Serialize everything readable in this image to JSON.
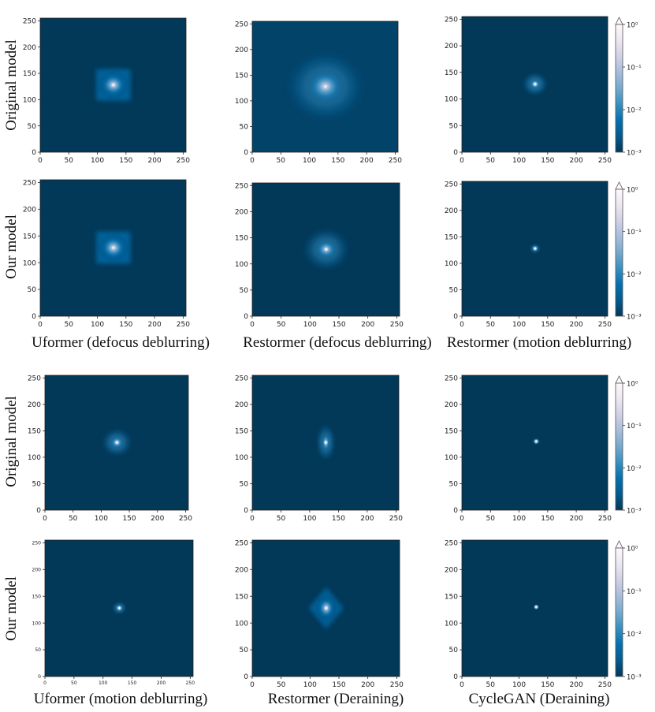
{
  "figure": {
    "row_labels": [
      "Original model",
      "Our model",
      "Original model",
      "Our model"
    ],
    "column_labels_top": [
      "Uformer (defocus deblurring)",
      "Restormer (defocus deblurring)",
      "Restormer (motion deblurring)"
    ],
    "column_labels_bottom": [
      "Uformer (motion deblurring)",
      "Restormer (Deraining)",
      "CycleGAN (Deraining)"
    ]
  },
  "colors": {
    "background_map": "#023858",
    "cmap": [
      "#023858",
      "#045a8d",
      "#0570b0",
      "#3690c0",
      "#74a9cf",
      "#a6bddb",
      "#d0d1e6",
      "#ece7f2",
      "#fff7fb"
    ]
  },
  "chart_data": [
    {
      "type": "heatmap",
      "title": "",
      "row": "Original model",
      "column": "Uformer (defocus deblurring)",
      "xlim": [
        0,
        255
      ],
      "ylim": [
        0,
        255
      ],
      "xticks": [
        0,
        50,
        100,
        150,
        200,
        250
      ],
      "yticks": [
        0,
        50,
        100,
        150,
        200,
        250
      ],
      "center": [
        128,
        128
      ],
      "pattern": "square",
      "extent": 60
    },
    {
      "type": "heatmap",
      "title": "",
      "row": "Original model",
      "column": "Restormer (defocus deblurring)",
      "xlim": [
        0,
        255
      ],
      "ylim": [
        0,
        255
      ],
      "xticks": [
        0,
        50,
        100,
        150,
        200,
        250
      ],
      "yticks": [
        0,
        50,
        100,
        150,
        200,
        250
      ],
      "center": [
        128,
        128
      ],
      "pattern": "wide-diffuse",
      "extent": 140
    },
    {
      "type": "heatmap",
      "title": "",
      "row": "Original model",
      "column": "Restormer (motion deblurring)",
      "xlim": [
        0,
        255
      ],
      "ylim": [
        0,
        255
      ],
      "xticks": [
        0,
        50,
        100,
        150,
        200,
        250
      ],
      "yticks": [
        0,
        50,
        100,
        150,
        200,
        250
      ],
      "center": [
        128,
        128
      ],
      "pattern": "blob",
      "extent": 50,
      "colorbar": {
        "scale": "log",
        "ticks": [
          "10⁰",
          "10⁻¹",
          "10⁻²",
          "10⁻³"
        ],
        "range": [
          0.001,
          1
        ]
      }
    },
    {
      "type": "heatmap",
      "title": "",
      "row": "Our model",
      "column": "Uformer (defocus deblurring)",
      "xlim": [
        0,
        255
      ],
      "ylim": [
        0,
        255
      ],
      "xticks": [
        0,
        50,
        100,
        150,
        200,
        250
      ],
      "yticks": [
        0,
        50,
        100,
        150,
        200,
        250
      ],
      "center": [
        128,
        128
      ],
      "pattern": "square",
      "extent": 60
    },
    {
      "type": "heatmap",
      "title": "",
      "row": "Our model",
      "column": "Restormer (defocus deblurring)",
      "xlim": [
        0,
        255
      ],
      "ylim": [
        0,
        255
      ],
      "xticks": [
        0,
        50,
        100,
        150,
        200,
        250
      ],
      "yticks": [
        0,
        50,
        100,
        150,
        200,
        250
      ],
      "center": [
        128,
        128
      ],
      "pattern": "blob",
      "extent": 90
    },
    {
      "type": "heatmap",
      "title": "",
      "row": "Our model",
      "column": "Restormer (motion deblurring)",
      "xlim": [
        0,
        255
      ],
      "ylim": [
        0,
        255
      ],
      "xticks": [
        0,
        50,
        100,
        150,
        200,
        250
      ],
      "yticks": [
        0,
        50,
        100,
        150,
        200,
        250
      ],
      "center": [
        128,
        128
      ],
      "pattern": "small",
      "extent": 22,
      "colorbar": {
        "scale": "log",
        "ticks": [
          "10⁰",
          "10⁻¹",
          "10⁻²",
          "10⁻³"
        ],
        "range": [
          0.001,
          1
        ]
      }
    },
    {
      "type": "heatmap",
      "title": "",
      "row": "Original model",
      "column": "Uformer (motion deblurring)",
      "xlim": [
        0,
        255
      ],
      "ylim": [
        0,
        255
      ],
      "xticks": [
        0,
        50,
        100,
        150,
        200,
        250
      ],
      "yticks": [
        0,
        50,
        100,
        150,
        200,
        250
      ],
      "center": [
        128,
        128
      ],
      "pattern": "blob",
      "extent": 60
    },
    {
      "type": "heatmap",
      "title": "",
      "row": "Original model",
      "column": "Restormer (Deraining)",
      "xlim": [
        0,
        255
      ],
      "ylim": [
        0,
        255
      ],
      "xticks": [
        0,
        50,
        100,
        150,
        200,
        250
      ],
      "yticks": [
        0,
        50,
        100,
        150,
        200,
        250
      ],
      "center": [
        128,
        128
      ],
      "pattern": "vertical",
      "extent": 55
    },
    {
      "type": "heatmap",
      "title": "",
      "row": "Original model",
      "column": "CycleGAN (Deraining)",
      "xlim": [
        0,
        255
      ],
      "ylim": [
        0,
        255
      ],
      "xticks": [
        0,
        50,
        100,
        150,
        200,
        250
      ],
      "yticks": [
        0,
        50,
        100,
        150,
        200,
        250
      ],
      "center": [
        130,
        130
      ],
      "pattern": "small",
      "extent": 16,
      "colorbar": {
        "scale": "log",
        "ticks": [
          "10⁰",
          "10⁻¹",
          "10⁻²",
          "10⁻³"
        ],
        "range": [
          0.001,
          1
        ]
      }
    },
    {
      "type": "heatmap",
      "title": "",
      "row": "Our model",
      "column": "Uformer (motion deblurring)",
      "xlim": [
        0,
        255
      ],
      "ylim": [
        0,
        255
      ],
      "xticks": [
        0,
        50,
        100,
        150,
        200,
        250
      ],
      "yticks": [
        0,
        50,
        100,
        150,
        200,
        250
      ],
      "center": [
        128,
        128
      ],
      "pattern": "small",
      "extent": 28
    },
    {
      "type": "heatmap",
      "title": "",
      "row": "Our model",
      "column": "Restormer (Deraining)",
      "xlim": [
        0,
        255
      ],
      "ylim": [
        0,
        255
      ],
      "xticks": [
        0,
        50,
        100,
        150,
        200,
        250
      ],
      "yticks": [
        0,
        50,
        100,
        150,
        200,
        250
      ],
      "center": [
        128,
        128
      ],
      "pattern": "diamond",
      "extent": 60
    },
    {
      "type": "heatmap",
      "title": "",
      "row": "Our model",
      "column": "CycleGAN (Deraining)",
      "xlim": [
        0,
        255
      ],
      "ylim": [
        0,
        255
      ],
      "xticks": [
        0,
        50,
        100,
        150,
        200,
        250
      ],
      "yticks": [
        0,
        50,
        100,
        150,
        200,
        250
      ],
      "center": [
        130,
        130
      ],
      "pattern": "small",
      "extent": 12,
      "colorbar": {
        "scale": "log",
        "ticks": [
          "10⁰",
          "10⁻¹",
          "10⁻²",
          "10⁻³"
        ],
        "range": [
          0.001,
          1
        ]
      }
    }
  ]
}
